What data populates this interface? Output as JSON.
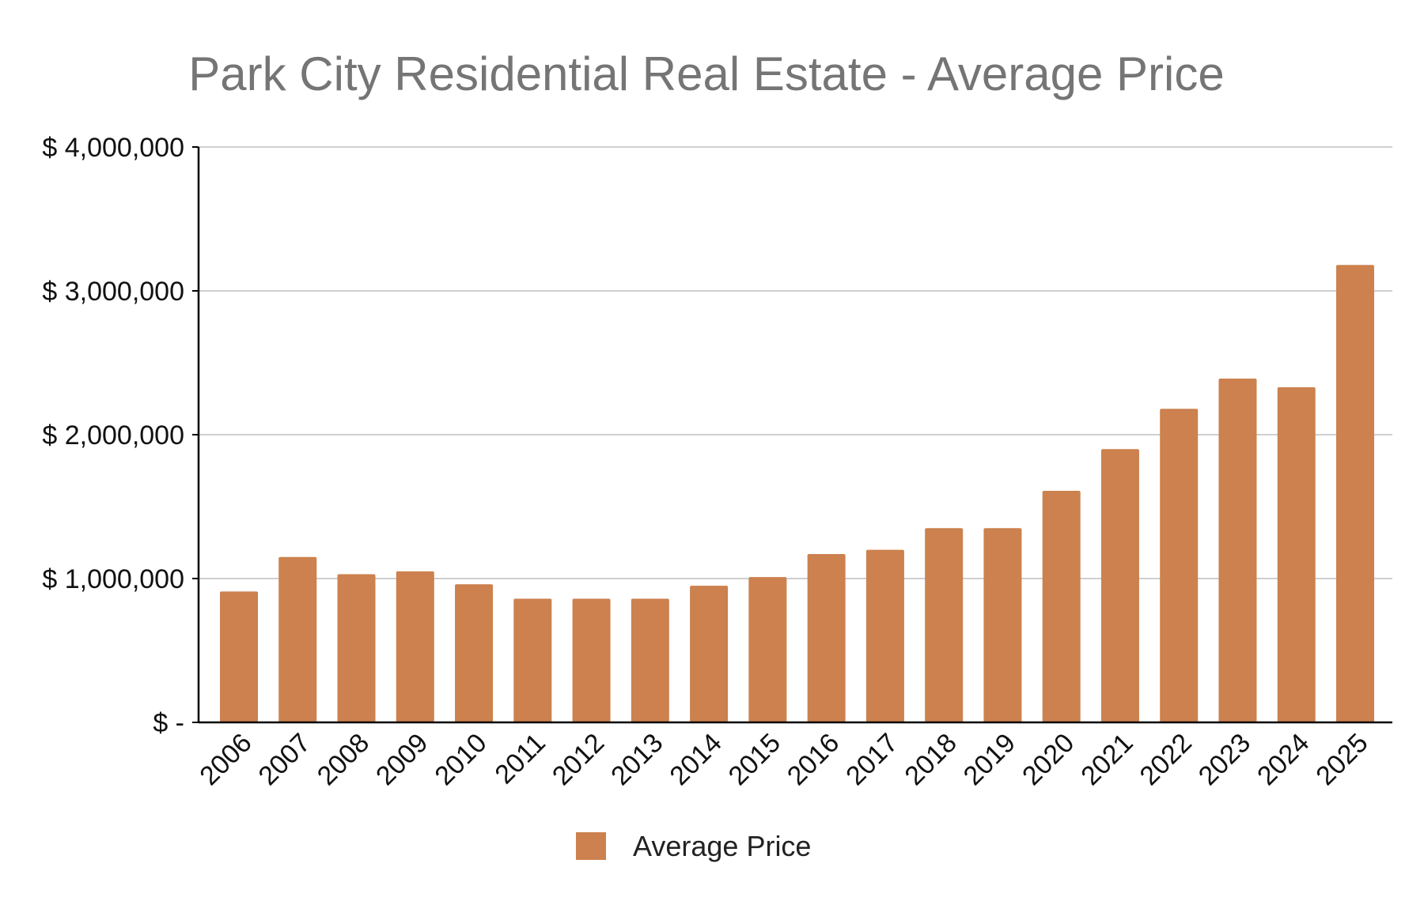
{
  "chart_data": {
    "type": "bar",
    "title": "Park City Residential Real Estate - Average Price",
    "xlabel": "",
    "ylabel": "",
    "categories": [
      "2006",
      "2007",
      "2008",
      "2009",
      "2010",
      "2011",
      "2012",
      "2013",
      "2014",
      "2015",
      "2016",
      "2017",
      "2018",
      "2019",
      "2020",
      "2021",
      "2022",
      "2023",
      "2024",
      "2025"
    ],
    "series": [
      {
        "name": "Average Price",
        "values": [
          910000,
          1150000,
          1030000,
          1050000,
          960000,
          860000,
          860000,
          860000,
          950000,
          1010000,
          1170000,
          1200000,
          1350000,
          1350000,
          1610000,
          1900000,
          2180000,
          2390000,
          2330000,
          3180000
        ]
      }
    ],
    "ylim": [
      0,
      4000000
    ],
    "yticks": [
      0,
      1000000,
      2000000,
      3000000,
      4000000
    ],
    "ytick_labels": [
      "$ -",
      "$ 1,000,000",
      "$ 2,000,000",
      "$ 3,000,000",
      "$ 4,000,000"
    ],
    "grid": true,
    "legend_position": "bottom-center",
    "colors": {
      "bar": "#cc814e",
      "grid": "#cfcfcf",
      "axis": "#000000",
      "title": "#757575"
    }
  }
}
